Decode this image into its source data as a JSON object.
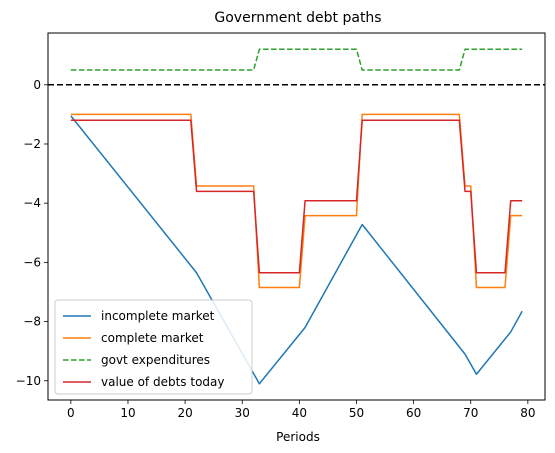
{
  "chart_data": {
    "type": "line",
    "title": "Government debt paths",
    "xlabel": "Periods",
    "ylabel": "",
    "xlim": [
      -4,
      83
    ],
    "ylim": [
      -10.65,
      1.75
    ],
    "xticks": [
      0,
      10,
      20,
      30,
      40,
      50,
      60,
      70,
      80
    ],
    "yticks": [
      0,
      -2,
      -4,
      -6,
      -8,
      -10
    ],
    "grid": false,
    "legend_position": "lower-left",
    "reference_line": {
      "y": 0,
      "style": "dashed",
      "color": "#000000"
    },
    "series": [
      {
        "name": "incomplete market",
        "color": "#1f77b4",
        "style": "solid",
        "x": [
          0,
          22,
          33,
          41,
          51,
          69,
          71,
          77,
          79
        ],
        "y": [
          -1.05,
          -6.35,
          -10.1,
          -8.2,
          -4.72,
          -9.1,
          -9.78,
          -8.35,
          -7.65
        ]
      },
      {
        "name": "complete market",
        "color": "#ff7f0e",
        "style": "solid",
        "x": [
          0,
          21,
          22,
          32,
          33,
          40,
          41,
          50,
          51,
          68,
          69,
          70,
          71,
          76,
          77,
          79
        ],
        "y": [
          -1.0,
          -1.0,
          -3.42,
          -3.42,
          -6.85,
          -6.85,
          -4.42,
          -4.42,
          -1.0,
          -1.0,
          -3.42,
          -3.42,
          -6.85,
          -6.85,
          -4.42,
          -4.42
        ]
      },
      {
        "name": "govt expenditures",
        "color": "#2ca02c",
        "style": "dashed",
        "x": [
          0,
          32,
          33,
          50,
          51,
          68,
          69,
          79
        ],
        "y": [
          0.5,
          0.5,
          1.2,
          1.2,
          0.5,
          0.5,
          1.2,
          1.2
        ]
      },
      {
        "name": "value of debts today",
        "color": "#d62728",
        "style": "solid",
        "x": [
          0,
          21,
          22,
          32,
          33,
          40,
          41,
          50,
          51,
          68,
          69,
          70,
          71,
          76,
          77,
          79
        ],
        "y": [
          -1.2,
          -1.2,
          -3.6,
          -3.6,
          -6.35,
          -6.35,
          -3.92,
          -3.92,
          -1.2,
          -1.2,
          -3.6,
          -3.6,
          -6.35,
          -6.35,
          -3.92,
          -3.92
        ]
      }
    ]
  }
}
